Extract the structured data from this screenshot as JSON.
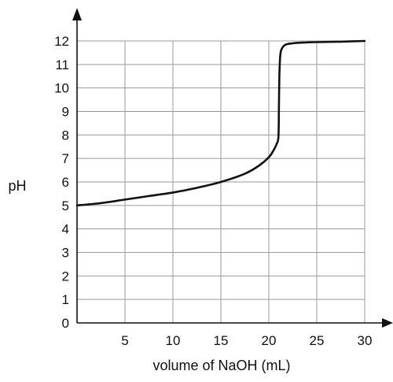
{
  "chart_data": {
    "type": "line",
    "xlabel": "volume of NaOH (mL)",
    "ylabel": "pH",
    "xlim": [
      0,
      30
    ],
    "ylim": [
      0,
      12
    ],
    "x_ticks": [
      5,
      10,
      15,
      20,
      25,
      30
    ],
    "y_ticks": [
      0,
      1,
      2,
      3,
      4,
      5,
      6,
      7,
      8,
      9,
      10,
      11,
      12
    ],
    "grid": true,
    "series": [
      {
        "x": [
          0,
          2.5,
          5,
          7.5,
          10,
          12.5,
          15,
          17.5,
          19,
          20,
          20.5,
          20.8,
          21,
          21.05,
          21.1,
          21.2,
          21.4,
          21.8,
          22.5,
          23.5,
          25,
          27.5,
          30
        ],
        "y": [
          5.0,
          5.1,
          5.25,
          5.4,
          5.55,
          5.75,
          6.0,
          6.35,
          6.7,
          7.05,
          7.35,
          7.6,
          7.9,
          9.0,
          10.5,
          11.4,
          11.7,
          11.85,
          11.9,
          11.93,
          11.95,
          11.97,
          12.0
        ],
        "color": "#111111"
      }
    ]
  }
}
